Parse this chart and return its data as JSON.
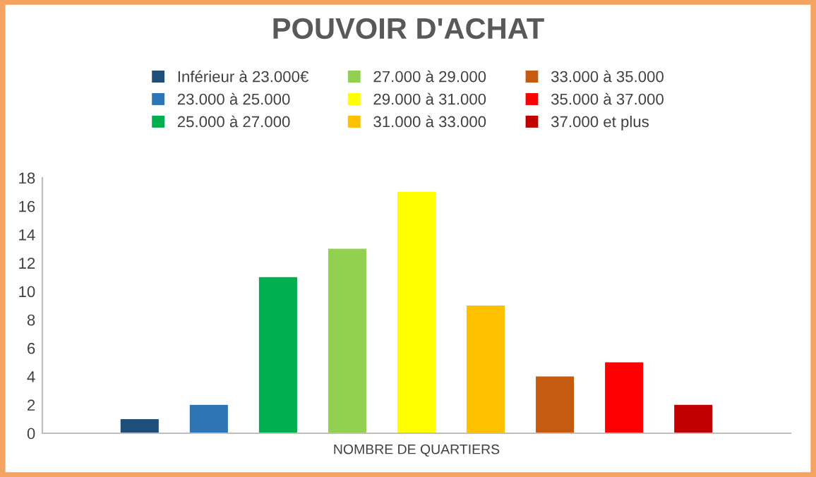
{
  "chart_data": {
    "type": "bar",
    "title": "POUVOIR D'ACHAT",
    "xlabel": "NOMBRE DE QUARTIERS",
    "categories": [
      null
    ],
    "series": [
      {
        "name": "Inférieur à 23.000€",
        "color": "#1f4e79",
        "values": [
          1
        ]
      },
      {
        "name": "23.000 à 25.000",
        "color": "#2e75b6",
        "values": [
          2
        ]
      },
      {
        "name": "25.000 à 27.000",
        "color": "#00b050",
        "values": [
          11
        ]
      },
      {
        "name": "27.000 à 29.000",
        "color": "#92d050",
        "values": [
          13
        ]
      },
      {
        "name": "29.000 à 31.000",
        "color": "#ffff00",
        "values": [
          17
        ]
      },
      {
        "name": "31.000 à 33.000",
        "color": "#ffc000",
        "values": [
          9
        ]
      },
      {
        "name": "33.000 à 35.000",
        "color": "#c55a11",
        "values": [
          4
        ]
      },
      {
        "name": "35.000 à 37.000",
        "color": "#ff0000",
        "values": [
          5
        ]
      },
      {
        "name": "37.000 et plus",
        "color": "#c00000",
        "values": [
          2
        ]
      }
    ],
    "ylim": [
      0,
      18
    ],
    "yticks": [
      0,
      2,
      4,
      6,
      8,
      10,
      12,
      14,
      16,
      18
    ],
    "grid": false,
    "legend": "top"
  }
}
